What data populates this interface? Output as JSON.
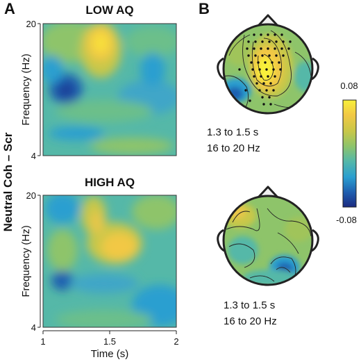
{
  "panels": {
    "a_letter": "A",
    "b_letter": "B",
    "side_label": "Neutral Coh – Scr",
    "low": {
      "title": "LOW AQ",
      "ylabel": "Frequency (Hz)",
      "y_ticks": [
        "20",
        "4"
      ]
    },
    "high": {
      "title": "HIGH AQ",
      "ylabel": "Frequency (Hz)",
      "y_ticks": [
        "20",
        "4"
      ]
    },
    "xlabel": "Time (s)",
    "x_ticks": [
      "1",
      "1.5",
      "2"
    ]
  },
  "topo_low": {
    "line1": "1.3 to 1.5 s",
    "line2": "16 to 20 Hz"
  },
  "topo_high": {
    "line1": "1.3 to 1.5 s",
    "line2": "16 to 20 Hz"
  },
  "colorbar": {
    "max_label": "0.08",
    "min_label": "-0.08",
    "range": [
      -0.08,
      0.08
    ],
    "colors": [
      "#1b2a80",
      "#1f5fb0",
      "#2a9fd0",
      "#55b8a8",
      "#8ec46a",
      "#c8c748",
      "#f2c844",
      "#f8f03a"
    ]
  },
  "chart_data": {
    "type": "heatmap",
    "panels": [
      {
        "title": "LOW AQ",
        "xlabel": "Time (s)",
        "ylabel": "Frequency (Hz)",
        "xlim": [
          1,
          2
        ],
        "ylim": [
          4,
          20
        ],
        "clim": [
          -0.08,
          0.08
        ],
        "features": [
          {
            "time": 1.45,
            "freq": 18,
            "value": 0.065
          },
          {
            "time": 1.1,
            "freq": 11,
            "value": -0.05
          },
          {
            "time": 1.5,
            "freq": 7,
            "value": 0.02
          }
        ]
      },
      {
        "title": "HIGH AQ",
        "xlabel": "Time (s)",
        "ylabel": "Frequency (Hz)",
        "xlim": [
          1,
          2
        ],
        "ylim": [
          4,
          20
        ],
        "clim": [
          -0.08,
          0.08
        ],
        "features": [
          {
            "time": 1.55,
            "freq": 14,
            "value": 0.045
          },
          {
            "time": 1.4,
            "freq": 18,
            "value": 0.035
          },
          {
            "time": 1.1,
            "freq": 9,
            "value": -0.045
          }
        ]
      }
    ]
  }
}
